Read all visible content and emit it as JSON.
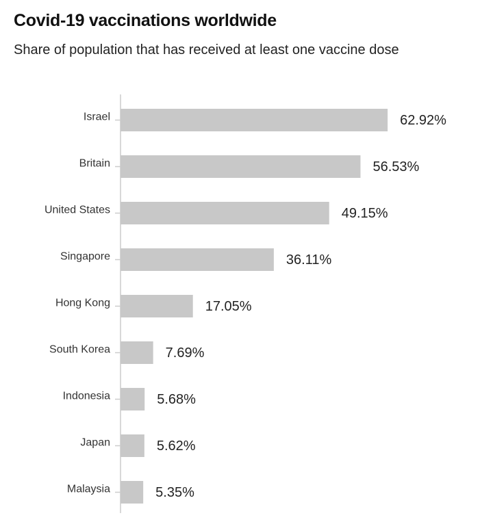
{
  "chart_data": {
    "type": "bar",
    "orientation": "horizontal",
    "title": "Covid-19 vaccinations worldwide",
    "subtitle": "Share of population that has received at least one vaccine dose",
    "categories": [
      "Israel",
      "Britain",
      "United States",
      "Singapore",
      "Hong Kong",
      "South Korea",
      "Indonesia",
      "Japan",
      "Malaysia"
    ],
    "values": [
      62.92,
      56.53,
      49.15,
      36.11,
      17.05,
      7.69,
      5.68,
      5.62,
      5.35
    ],
    "value_labels": [
      "62.92%",
      "56.53%",
      "49.15%",
      "36.11%",
      "17.05%",
      "7.69%",
      "5.68%",
      "5.62%",
      "5.35%"
    ],
    "xlim": [
      0,
      100
    ],
    "grid": false,
    "bar_color": "#c8c8c8",
    "axis_color": "#cccccc"
  }
}
